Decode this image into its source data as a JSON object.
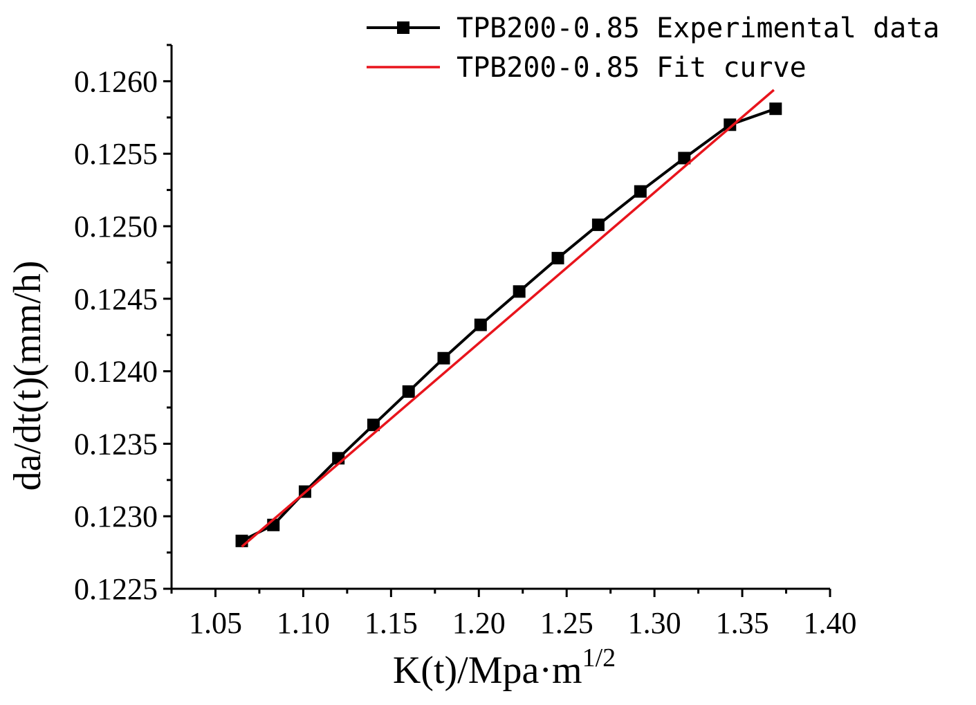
{
  "chart_data": {
    "type": "line",
    "xlabel": {
      "main": "K(t)/Mpa·m",
      "sup": "1/2"
    },
    "ylabel": "da/dt(t)(mm/h)",
    "xlim": [
      1.025,
      1.4
    ],
    "ylim": [
      0.1225,
      0.12625
    ],
    "x_ticks": [
      "1.05",
      "1.10",
      "1.15",
      "1.20",
      "1.25",
      "1.30",
      "1.35",
      "1.40"
    ],
    "y_ticks": [
      "0.1225",
      "0.1230",
      "0.1235",
      "0.1240",
      "0.1245",
      "0.1250",
      "0.1255",
      "0.1260"
    ],
    "grid": false,
    "legend_position": "top-right",
    "series": [
      {
        "name": "TPB200-0.85 Experimental data",
        "color": "#000000",
        "marker": "square",
        "x": [
          1.065,
          1.083,
          1.101,
          1.12,
          1.14,
          1.16,
          1.18,
          1.201,
          1.223,
          1.245,
          1.268,
          1.292,
          1.317,
          1.343,
          1.369
        ],
        "y": [
          0.12283,
          0.12294,
          0.12317,
          0.1234,
          0.12363,
          0.12386,
          0.12409,
          0.12432,
          0.12455,
          0.12478,
          0.12501,
          0.12524,
          0.12547,
          0.1257,
          0.12581
        ]
      },
      {
        "name": "TPB200-0.85 Fit curve",
        "color": "#e8141c",
        "marker": "none",
        "x": [
          1.065,
          1.368
        ],
        "y": [
          0.12279,
          0.12594
        ]
      }
    ]
  }
}
